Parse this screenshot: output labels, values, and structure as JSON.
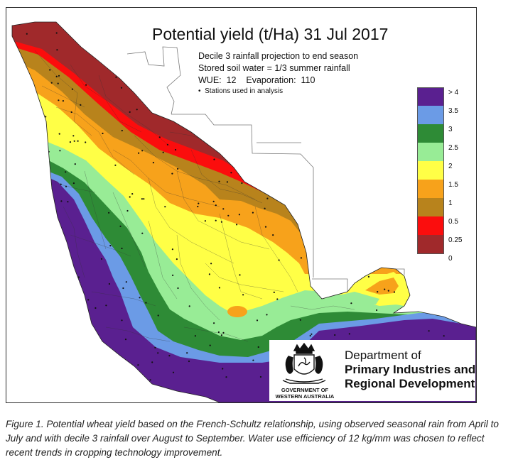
{
  "map": {
    "title": "Potential yield (t/Ha) 31 Jul 2017",
    "info_lines": [
      "Decile 3 rainfall projection to end season",
      "Stored soil water = 1/3 summer rainfall",
      "WUE:  12    Evaporation:  110"
    ],
    "stations_note": "Stations used in analysis",
    "legend": [
      {
        "label": "> 4",
        "color": "#5a2090"
      },
      {
        "label": "3.5",
        "color": "#6b9be6"
      },
      {
        "label": "3",
        "color": "#2e8b36"
      },
      {
        "label": "2.5",
        "color": "#98ec96"
      },
      {
        "label": "2",
        "color": "#ffff46"
      },
      {
        "label": "1.5",
        "color": "#f7a21b"
      },
      {
        "label": "1",
        "color": "#b8831c"
      },
      {
        "label": "0.5",
        "color": "#fb0d0d"
      },
      {
        "label": "0.25",
        "color": "#a0292b"
      },
      {
        "label": "0",
        "color": ""
      }
    ]
  },
  "logo": {
    "government_line1": "GOVERNMENT OF",
    "government_line2": "WESTERN AUSTRALIA",
    "department_line1": "Department of",
    "department_line2": "Primary Industries and",
    "department_line3": "Regional Development"
  },
  "caption": "Figure 1. Potential wheat yield based on the French-Schultz relationship, using observed seasonal rain from April to July and with decile 3 rainfall over August to September. Water use efficiency of 12 kg/mm was chosen to reflect recent trends in cropping technology improvement."
}
